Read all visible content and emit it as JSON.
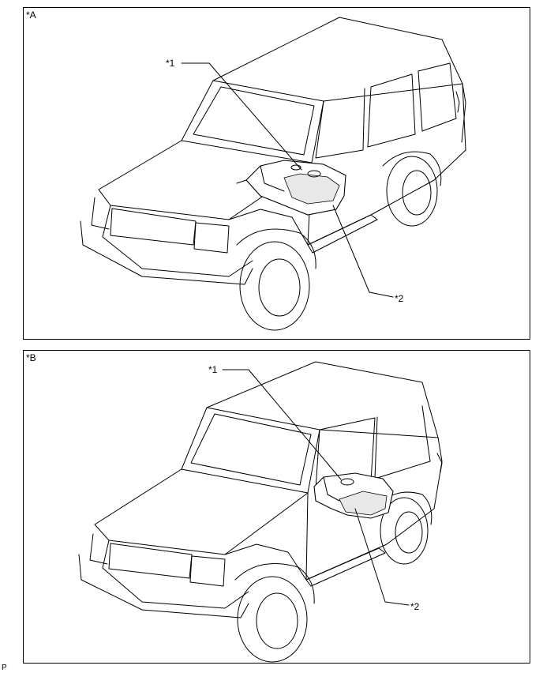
{
  "panels": [
    {
      "label": "*A",
      "callouts": [
        "*1",
        "*2"
      ],
      "icon": "four-door-suv-fuel-tank-illustration"
    },
    {
      "label": "*B",
      "callouts": [
        "*1",
        "*2"
      ],
      "icon": "two-door-suv-fuel-tank-illustration"
    }
  ],
  "footer_code": "P"
}
